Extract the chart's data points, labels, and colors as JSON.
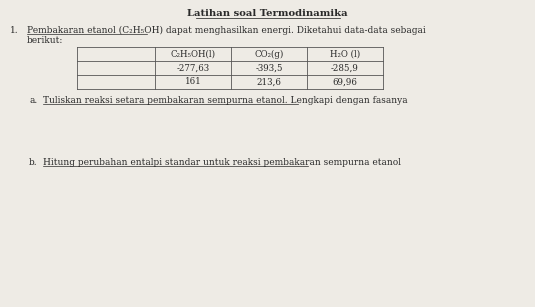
{
  "title": "Latihan soal Termodinamika",
  "background_color": "#eeebe5",
  "table_headers": [
    "C₂H₅OH(l)",
    "CO₂(g)",
    "H₂O (l)"
  ],
  "table_row1": [
    "-277,63",
    "-393,5",
    "-285,9"
  ],
  "table_row2": [
    "161",
    "213,6",
    "69,96"
  ],
  "question_a": "Tuliskan reaksi setara pembakaran sempurna etanol. Lengkapi dengan fasanya",
  "question_b": "Hitung perubahan entalpi standar untuk reaksi pembakaran sempurna etanol",
  "item_number": "1.",
  "item_a": "a.",
  "item_b": "b.",
  "font_size_title": 7.2,
  "font_size_body": 6.5,
  "font_size_table": 6.2,
  "text_color": "#2a2a2a",
  "line_color": "#555555"
}
